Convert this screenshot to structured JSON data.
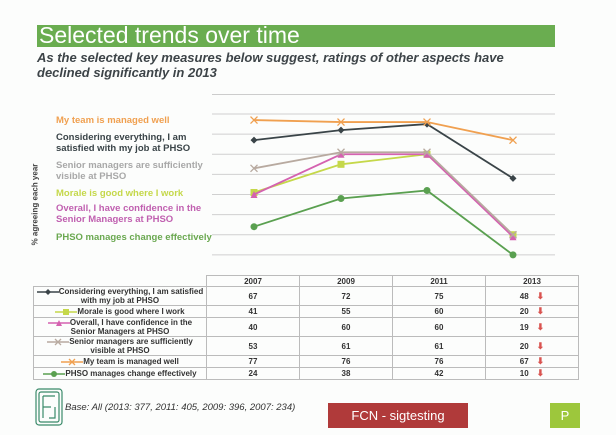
{
  "title": "Selected trends over time",
  "subtitle": "As the selected key measures below suggest, ratings of other aspects have declined significantly in 2013",
  "chart_data": {
    "type": "line",
    "ylabel": "% agreeing each year",
    "categories": [
      "2007",
      "2009",
      "2011",
      "2013"
    ],
    "ylim": [
      0,
      80
    ],
    "grid": true,
    "legend_placement": "left",
    "series": [
      {
        "name": "Considering everything, I am satisfied with my job at PHSO",
        "values": [
          67,
          72,
          75,
          48
        ],
        "color": "#3a4448",
        "marker": "diamond",
        "sig_down": true
      },
      {
        "name": "Morale is good where I work",
        "values": [
          41,
          55,
          60,
          20
        ],
        "color": "#c5d84a",
        "marker": "square",
        "sig_down": true
      },
      {
        "name": "Overall, I have confidence in the Senior Managers at PHSO",
        "values": [
          40,
          60,
          60,
          19
        ],
        "color": "#d462b0",
        "marker": "triangle",
        "sig_down": true
      },
      {
        "name": "Senior managers are sufficiently visible at PHSO",
        "values": [
          53,
          61,
          61,
          20
        ],
        "color": "#b8aaa0",
        "marker": "x",
        "sig_down": true
      },
      {
        "name": "My team is managed well",
        "values": [
          77,
          76,
          76,
          67
        ],
        "color": "#f0a050",
        "marker": "x",
        "sig_down": true
      },
      {
        "name": "PHSO manages change effectively",
        "values": [
          24,
          38,
          42,
          10
        ],
        "color": "#5aa050",
        "marker": "circle",
        "sig_down": true
      }
    ]
  },
  "legend": [
    {
      "label": "My team is managed well",
      "color": "#f0a050"
    },
    {
      "label": "Considering everything, I am satisfied with my job at PHSO",
      "color": "#3a4448"
    },
    {
      "label": "Senior managers are sufficiently visible at PHSO",
      "color": "#a8a8a8"
    },
    {
      "label": "Morale is good where I work",
      "color": "#c5d84a"
    },
    {
      "label": "Overall, I have confidence in the Senior Managers at PHSO",
      "color": "#c060b0"
    },
    {
      "label": "PHSO manages change effectively",
      "color": "#6aa850"
    }
  ],
  "down_arrow": "⬇",
  "footer": {
    "base": "Base: All (2013: 377, 2011: 405, 2009: 396, 2007: 234)",
    "fcn_button": "FCN - sigtesting",
    "p_button": "P"
  }
}
